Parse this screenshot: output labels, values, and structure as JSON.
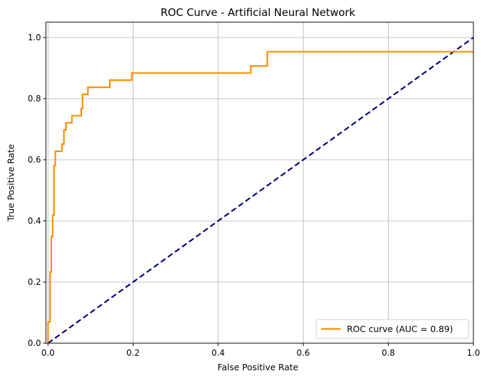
{
  "chart_data": {
    "type": "line",
    "title": "ROC Curve - Artificial Neural Network",
    "xlabel": "False Positive Rate",
    "ylabel": "True Positive Rate",
    "xlim": [
      -0.005,
      1.0
    ],
    "ylim": [
      0.0,
      1.05
    ],
    "grid": true,
    "legend_position": "lower-right",
    "xticks": [
      0.0,
      0.2,
      0.4,
      0.6,
      0.8,
      1.0
    ],
    "xtick_labels": [
      "0.0",
      "0.2",
      "0.4",
      "0.6",
      "0.8",
      "1.0"
    ],
    "yticks": [
      0.0,
      0.2,
      0.4,
      0.6,
      0.8,
      1.0
    ],
    "ytick_labels": [
      "0.0",
      "0.2",
      "0.4",
      "0.6",
      "0.8",
      "1.0"
    ],
    "series": [
      {
        "name": "ROC curve (AUC = 0.89)",
        "color": "#ff8c00",
        "style": "solid",
        "x": [
          0.0,
          0.0,
          0.0047,
          0.0047,
          0.0078,
          0.0078,
          0.0109,
          0.0109,
          0.0141,
          0.0141,
          0.0172,
          0.0172,
          0.0328,
          0.0328,
          0.0375,
          0.0375,
          0.0422,
          0.0422,
          0.0563,
          0.0563,
          0.0781,
          0.0781,
          0.0813,
          0.0813,
          0.0938,
          0.0938,
          0.1453,
          0.1453,
          0.1969,
          0.1969,
          0.4766,
          0.4766,
          0.5156,
          0.5156,
          1.0
        ],
        "y": [
          0.0,
          0.0698,
          0.0698,
          0.2326,
          0.2326,
          0.3488,
          0.3488,
          0.4186,
          0.4186,
          0.5814,
          0.5814,
          0.6279,
          0.6279,
          0.6512,
          0.6512,
          0.6977,
          0.6977,
          0.7209,
          0.7209,
          0.7442,
          0.7442,
          0.7674,
          0.7674,
          0.814,
          0.814,
          0.8372,
          0.8372,
          0.8605,
          0.8605,
          0.8837,
          0.8837,
          0.907,
          0.907,
          0.9535,
          0.9535
        ]
      },
      {
        "name": "chance-diagonal",
        "color": "#000080",
        "style": "dashed",
        "x": [
          0.0,
          1.0
        ],
        "y": [
          0.0,
          1.0
        ]
      }
    ]
  }
}
